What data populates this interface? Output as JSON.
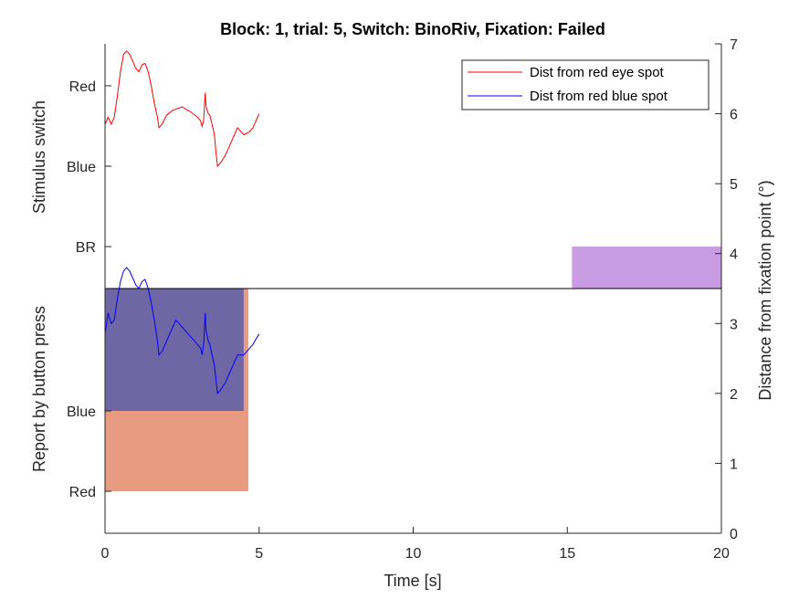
{
  "chart_data": {
    "type": "line",
    "title": "Block: 1, trial: 5, Switch: BinoRiv, Fixation: Failed",
    "xlabel": "Time [s]",
    "ylabel_left_upper": "Stimulus switch",
    "ylabel_left_lower": "Report by button press",
    "ylabel_right": "Distance from fixation point (°)",
    "xlim": [
      0,
      20
    ],
    "ylim_right": [
      0,
      7
    ],
    "x_ticks": [
      "0",
      "5",
      "10",
      "15",
      "20"
    ],
    "x_tick_values": [
      0,
      5,
      10,
      15,
      20
    ],
    "y_right_ticks": [
      "0",
      "1",
      "2",
      "3",
      "4",
      "5",
      "6",
      "7"
    ],
    "y_right_tick_values": [
      0,
      1,
      2,
      3,
      4,
      5,
      6,
      7
    ],
    "y_left_upper_ticks": [
      {
        "label": "Red",
        "value": 6.4
      },
      {
        "label": "Blue",
        "value": 5.25
      },
      {
        "label": "BR",
        "value": 4.1
      }
    ],
    "y_left_lower_ticks": [
      {
        "label": "Blue",
        "value": 1.75
      },
      {
        "label": "Red",
        "value": 0.6
      }
    ],
    "divider_y": 3.5,
    "legend": {
      "placement": "top-right",
      "entries": [
        {
          "name": "Dist from red eye spot",
          "color": "#ff0000"
        },
        {
          "name": "Dist from red blue spot",
          "color": "#0000ff"
        }
      ]
    },
    "regions": [
      {
        "name": "report-red",
        "x0": 0,
        "x1": 4.65,
        "y0": 0.6,
        "y1": 3.5,
        "color": "#e89b80"
      },
      {
        "name": "report-blue",
        "x0": 0,
        "x1": 4.5,
        "y0": 1.75,
        "y1": 3.5,
        "color": "#6e66a5"
      },
      {
        "name": "stimulus-br",
        "x0": 15.15,
        "x1": 20,
        "y0": 3.5,
        "y1": 4.1,
        "color": "#c99be3"
      }
    ],
    "series": [
      {
        "name": "Dist from red eye spot",
        "color": "#ff0000",
        "points": [
          [
            0,
            5.85
          ],
          [
            0.1,
            5.95
          ],
          [
            0.2,
            5.85
          ],
          [
            0.3,
            5.95
          ],
          [
            0.4,
            6.25
          ],
          [
            0.5,
            6.6
          ],
          [
            0.6,
            6.85
          ],
          [
            0.7,
            6.9
          ],
          [
            0.8,
            6.85
          ],
          [
            0.9,
            6.75
          ],
          [
            1.0,
            6.65
          ],
          [
            1.1,
            6.6
          ],
          [
            1.2,
            6.7
          ],
          [
            1.3,
            6.72
          ],
          [
            1.4,
            6.6
          ],
          [
            1.5,
            6.4
          ],
          [
            1.6,
            6.15
          ],
          [
            1.7,
            5.95
          ],
          [
            1.75,
            5.8
          ],
          [
            1.85,
            5.85
          ],
          [
            2.0,
            5.98
          ],
          [
            2.2,
            6.05
          ],
          [
            2.4,
            6.08
          ],
          [
            2.5,
            6.1
          ],
          [
            2.6,
            6.07
          ],
          [
            2.8,
            6.02
          ],
          [
            3.0,
            5.95
          ],
          [
            3.1,
            5.9
          ],
          [
            3.15,
            5.82
          ],
          [
            3.2,
            5.9
          ],
          [
            3.25,
            6.3
          ],
          [
            3.28,
            6.1
          ],
          [
            3.35,
            6.0
          ],
          [
            3.4,
            5.98
          ],
          [
            3.5,
            5.8
          ],
          [
            3.55,
            5.7
          ],
          [
            3.6,
            5.45
          ],
          [
            3.65,
            5.25
          ],
          [
            3.75,
            5.3
          ],
          [
            3.9,
            5.4
          ],
          [
            4.0,
            5.5
          ],
          [
            4.1,
            5.6
          ],
          [
            4.2,
            5.7
          ],
          [
            4.3,
            5.8
          ],
          [
            4.4,
            5.75
          ],
          [
            4.5,
            5.7
          ],
          [
            4.6,
            5.72
          ],
          [
            4.7,
            5.75
          ],
          [
            4.8,
            5.8
          ],
          [
            4.9,
            5.9
          ],
          [
            5.0,
            6.0
          ]
        ]
      },
      {
        "name": "Dist from red blue spot",
        "color": "#0000ff",
        "points": [
          [
            0,
            2.85
          ],
          [
            0.1,
            3.15
          ],
          [
            0.2,
            3.0
          ],
          [
            0.3,
            3.05
          ],
          [
            0.4,
            3.35
          ],
          [
            0.5,
            3.6
          ],
          [
            0.6,
            3.75
          ],
          [
            0.7,
            3.8
          ],
          [
            0.8,
            3.75
          ],
          [
            0.9,
            3.65
          ],
          [
            1.0,
            3.55
          ],
          [
            1.1,
            3.5
          ],
          [
            1.2,
            3.6
          ],
          [
            1.3,
            3.63
          ],
          [
            1.4,
            3.5
          ],
          [
            1.5,
            3.3
          ],
          [
            1.6,
            3.05
          ],
          [
            1.7,
            2.75
          ],
          [
            1.75,
            2.55
          ],
          [
            1.85,
            2.6
          ],
          [
            2.0,
            2.75
          ],
          [
            2.1,
            2.85
          ],
          [
            2.2,
            2.95
          ],
          [
            2.3,
            3.05
          ],
          [
            2.4,
            3.0
          ],
          [
            2.5,
            2.95
          ],
          [
            2.6,
            2.9
          ],
          [
            2.7,
            2.85
          ],
          [
            2.8,
            2.8
          ],
          [
            2.9,
            2.75
          ],
          [
            3.0,
            2.7
          ],
          [
            3.1,
            2.65
          ],
          [
            3.15,
            2.55
          ],
          [
            3.2,
            2.7
          ],
          [
            3.25,
            3.15
          ],
          [
            3.28,
            2.9
          ],
          [
            3.35,
            2.75
          ],
          [
            3.4,
            2.7
          ],
          [
            3.5,
            2.5
          ],
          [
            3.55,
            2.4
          ],
          [
            3.6,
            2.2
          ],
          [
            3.65,
            2.0
          ],
          [
            3.75,
            2.05
          ],
          [
            3.9,
            2.15
          ],
          [
            4.0,
            2.25
          ],
          [
            4.1,
            2.35
          ],
          [
            4.2,
            2.45
          ],
          [
            4.3,
            2.55
          ],
          [
            4.4,
            2.55
          ],
          [
            4.5,
            2.55
          ],
          [
            4.6,
            2.6
          ],
          [
            4.7,
            2.65
          ],
          [
            4.8,
            2.7
          ],
          [
            4.9,
            2.78
          ],
          [
            5.0,
            2.85
          ]
        ]
      }
    ]
  }
}
